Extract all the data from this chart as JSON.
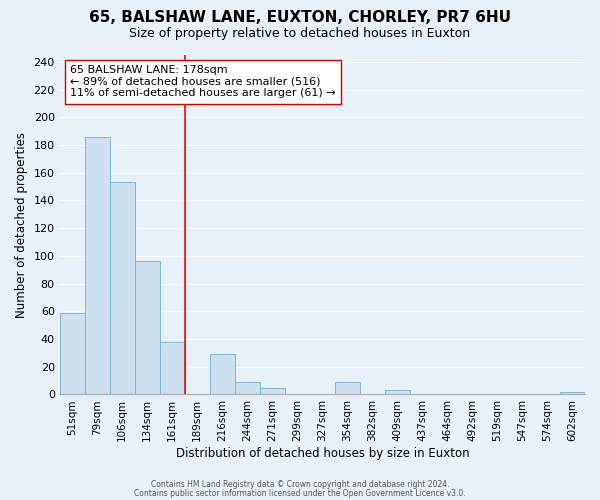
{
  "title": "65, BALSHAW LANE, EUXTON, CHORLEY, PR7 6HU",
  "subtitle": "Size of property relative to detached houses in Euxton",
  "xlabel": "Distribution of detached houses by size in Euxton",
  "ylabel": "Number of detached properties",
  "footer_line1": "Contains HM Land Registry data © Crown copyright and database right 2024.",
  "footer_line2": "Contains public sector information licensed under the Open Government Licence v3.0.",
  "bin_labels": [
    "51sqm",
    "79sqm",
    "106sqm",
    "134sqm",
    "161sqm",
    "189sqm",
    "216sqm",
    "244sqm",
    "271sqm",
    "299sqm",
    "327sqm",
    "354sqm",
    "382sqm",
    "409sqm",
    "437sqm",
    "464sqm",
    "492sqm",
    "519sqm",
    "547sqm",
    "574sqm",
    "602sqm"
  ],
  "bar_values": [
    59,
    186,
    153,
    96,
    38,
    0,
    29,
    9,
    5,
    0,
    0,
    9,
    0,
    3,
    0,
    0,
    0,
    0,
    0,
    0,
    2
  ],
  "bar_color": "#cce0f0",
  "bar_edge_color": "#7ab8d9",
  "red_line_bin_index": 5,
  "annotation_line1": "65 BALSHAW LANE: 178sqm",
  "annotation_line2": "← 89% of detached houses are smaller (516)",
  "annotation_line3": "11% of semi-detached houses are larger (61) →",
  "ylim": [
    0,
    245
  ],
  "yticks": [
    0,
    20,
    40,
    60,
    80,
    100,
    120,
    140,
    160,
    180,
    200,
    220,
    240
  ],
  "background_color": "#e8f1f8",
  "plot_bg_color": "#e8f1f8",
  "grid_color": "#ffffff",
  "title_fontsize": 11,
  "subtitle_fontsize": 9
}
